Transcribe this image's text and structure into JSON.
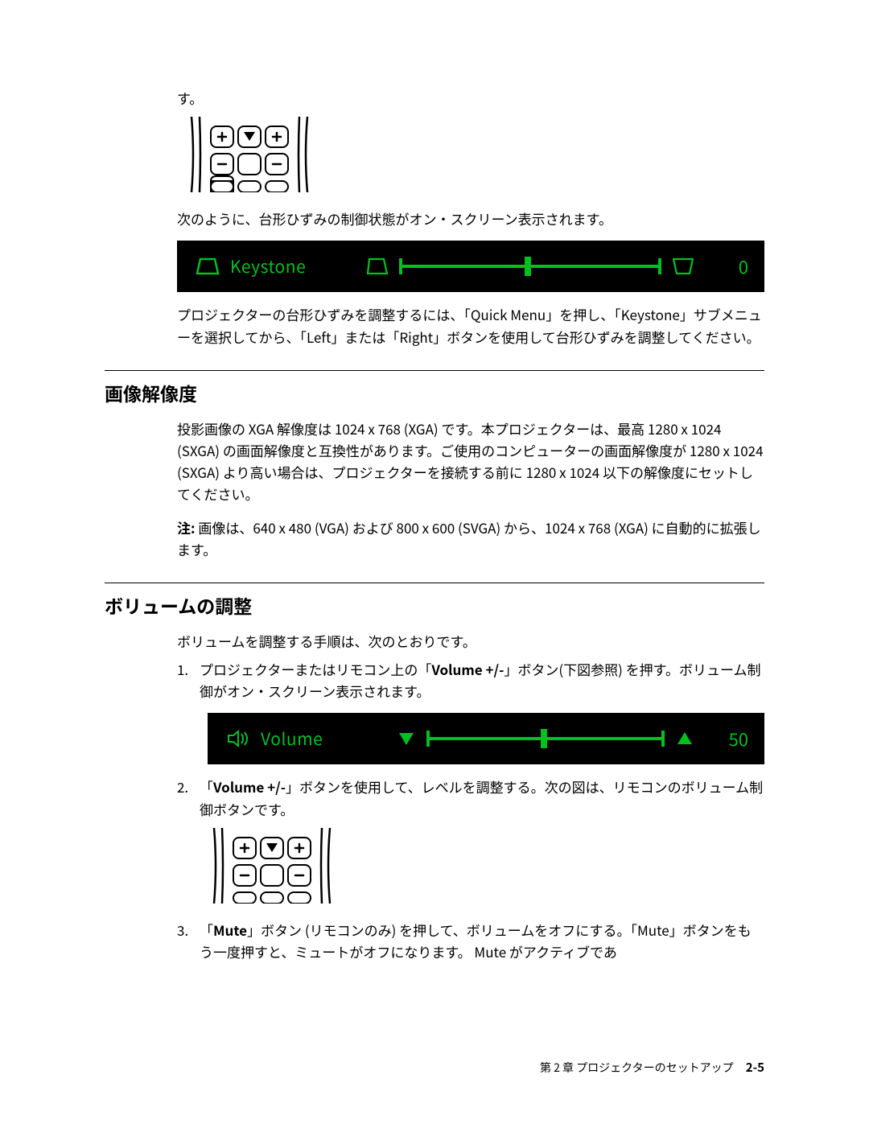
{
  "intro_su": "す。",
  "keystone_intro": "次のように、台形ひずみの制御状態がオン・スクリーン表示されます。",
  "keystone_osd": {
    "label": "Keystone",
    "value": "0",
    "tick_position_pct": 48,
    "bar_color": "#00c020",
    "bg_color": "#000000"
  },
  "keystone_para": "プロジェクターの台形ひずみを調整するには、「Quick Menu」を押し、「Keystone」サブメニューを選択してから、「Left」または「Right」ボタンを使用して台形ひずみを調整してください。",
  "section_resolution": {
    "heading": "画像解像度",
    "para": "投影画像の XGA 解像度は 1024 x 768 (XGA) です。本プロジェクターは、最高 1280 x 1024 (SXGA) の画面解像度と互換性があります。ご使用のコンピューターの画面解像度が 1280 x 1024 (SXGA) より高い場合は、プロジェクターを接続する前に 1280 x 1024 以下の解像度にセットしてください。",
    "note_label": "注:",
    "note_text": "画像は、640 x 480 (VGA) および 800 x 600 (SVGA) から、1024 x 768 (XGA) に自動的に拡張します。"
  },
  "section_volume": {
    "heading": "ボリュームの調整",
    "intro": "ボリュームを調整する手順は、次のとおりです。",
    "item1_pre": "プロジェクターまたはリモコン上の「",
    "item1_bold": "Volume +/-",
    "item1_post": "」ボタン(下図参照) を押す。ボリューム制御がオン・スクリーン表示されます。",
    "osd": {
      "label": "Volume",
      "value": "50",
      "tick_position_pct": 48,
      "bar_color": "#00c020",
      "bg_color": "#000000"
    },
    "item2_pre": "「",
    "item2_bold": "Volume +/-",
    "item2_post": "」ボタンを使用して、レベルを調整する。次の図は、リモコンのボリューム制御ボタンです。",
    "item3_pre": "「",
    "item3_bold": "Mute",
    "item3_post": "」ボタン (リモコンのみ) を押して、ボリュームをオフにする。「Mute」ボタンをもう一度押すと、ミュートがオフになります。 Mute がアクティブであ"
  },
  "footer": {
    "chapter": "第 2 章 プロジェクターのセットアップ",
    "page": "2-5"
  },
  "colors": {
    "text": "#000000",
    "osd_fg": "#00c020",
    "osd_bg": "#000000",
    "page_bg": "#ffffff"
  }
}
